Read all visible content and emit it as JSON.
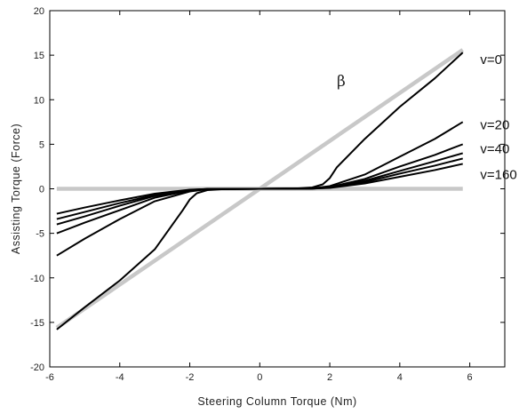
{
  "chart_data": {
    "type": "line",
    "xlabel": "Steering Column Torque (Nm)",
    "ylabel": "Assisting Torque (Force)",
    "xlim": [
      -6,
      7
    ],
    "ylim": [
      -20,
      20
    ],
    "xticks": [
      -6,
      -4,
      -2,
      0,
      2,
      4,
      6
    ],
    "yticks": [
      -20,
      -15,
      -10,
      -5,
      0,
      5,
      10,
      15,
      20
    ],
    "grid": false,
    "annotations": [
      {
        "text": "β",
        "x": 2.2,
        "y": 11.5
      }
    ],
    "reference_lines": [
      {
        "color": "#c8c8c8",
        "points": [
          [
            -5.8,
            -15.6
          ],
          [
            5.8,
            15.6
          ]
        ]
      },
      {
        "color": "#c8c8c8",
        "points": [
          [
            -5.8,
            0
          ],
          [
            5.8,
            0
          ]
        ]
      }
    ],
    "series": [
      {
        "name": "v=0",
        "label_pos": [
          6.3,
          14.5
        ],
        "points": [
          [
            -5.8,
            -15.8
          ],
          [
            -5.0,
            -13.3
          ],
          [
            -4.0,
            -10.3
          ],
          [
            -3.0,
            -6.8
          ],
          [
            -2.2,
            -2.4
          ],
          [
            -2.0,
            -1.2
          ],
          [
            -1.8,
            -0.5
          ],
          [
            -1.5,
            -0.15
          ],
          [
            -1.0,
            -0.02
          ],
          [
            0,
            0
          ],
          [
            1.0,
            0.02
          ],
          [
            1.5,
            0.15
          ],
          [
            1.8,
            0.5
          ],
          [
            2.0,
            1.2
          ],
          [
            2.2,
            2.4
          ],
          [
            3.0,
            5.6
          ],
          [
            4.0,
            9.2
          ],
          [
            5.0,
            12.4
          ],
          [
            5.8,
            15.3
          ]
        ]
      },
      {
        "name": "v=20",
        "label_pos": [
          6.3,
          7.2
        ],
        "points": [
          [
            -5.8,
            -7.5
          ],
          [
            -5.0,
            -5.6
          ],
          [
            -4.0,
            -3.4
          ],
          [
            -3.0,
            -1.4
          ],
          [
            -2.0,
            -0.3
          ],
          [
            -1.5,
            -0.05
          ],
          [
            0,
            0
          ],
          [
            1.5,
            0.05
          ],
          [
            2.0,
            0.3
          ],
          [
            3.0,
            1.6
          ],
          [
            4.0,
            3.6
          ],
          [
            5.0,
            5.6
          ],
          [
            5.8,
            7.5
          ]
        ]
      },
      {
        "name": "v=40",
        "label_pos": [
          6.3,
          4.5
        ],
        "points": [
          [
            -5.8,
            -5.0
          ],
          [
            -5.0,
            -3.8
          ],
          [
            -4.0,
            -2.4
          ],
          [
            -3.0,
            -1.0
          ],
          [
            -2.0,
            -0.2
          ],
          [
            -1.5,
            -0.04
          ],
          [
            0,
            0
          ],
          [
            1.5,
            0.04
          ],
          [
            2.0,
            0.2
          ],
          [
            3.0,
            1.1
          ],
          [
            4.0,
            2.5
          ],
          [
            5.0,
            3.8
          ],
          [
            5.8,
            5.0
          ]
        ]
      },
      {
        "name": "",
        "label_pos": null,
        "points": [
          [
            -5.8,
            -4.0
          ],
          [
            -5.0,
            -3.1
          ],
          [
            -4.0,
            -1.9
          ],
          [
            -3.0,
            -0.8
          ],
          [
            -2.0,
            -0.15
          ],
          [
            -1.5,
            -0.03
          ],
          [
            0,
            0
          ],
          [
            1.5,
            0.03
          ],
          [
            2.0,
            0.15
          ],
          [
            3.0,
            0.9
          ],
          [
            4.0,
            2.0
          ],
          [
            5.0,
            3.1
          ],
          [
            5.8,
            4.0
          ]
        ]
      },
      {
        "name": "",
        "label_pos": null,
        "points": [
          [
            -5.8,
            -3.4
          ],
          [
            -5.0,
            -2.6
          ],
          [
            -4.0,
            -1.6
          ],
          [
            -3.0,
            -0.7
          ],
          [
            -2.0,
            -0.12
          ],
          [
            -1.5,
            -0.02
          ],
          [
            0,
            0
          ],
          [
            1.5,
            0.02
          ],
          [
            2.0,
            0.12
          ],
          [
            3.0,
            0.75
          ],
          [
            4.0,
            1.7
          ],
          [
            5.0,
            2.6
          ],
          [
            5.8,
            3.4
          ]
        ]
      },
      {
        "name": "v=160",
        "label_pos": [
          6.3,
          1.6
        ],
        "points": [
          [
            -5.8,
            -2.8
          ],
          [
            -5.0,
            -2.1
          ],
          [
            -4.0,
            -1.3
          ],
          [
            -3.0,
            -0.55
          ],
          [
            -2.0,
            -0.1
          ],
          [
            -1.5,
            -0.02
          ],
          [
            0,
            0
          ],
          [
            1.5,
            0.02
          ],
          [
            2.0,
            0.1
          ],
          [
            3.0,
            0.6
          ],
          [
            4.0,
            1.35
          ],
          [
            5.0,
            2.1
          ],
          [
            5.8,
            2.8
          ]
        ]
      }
    ]
  }
}
